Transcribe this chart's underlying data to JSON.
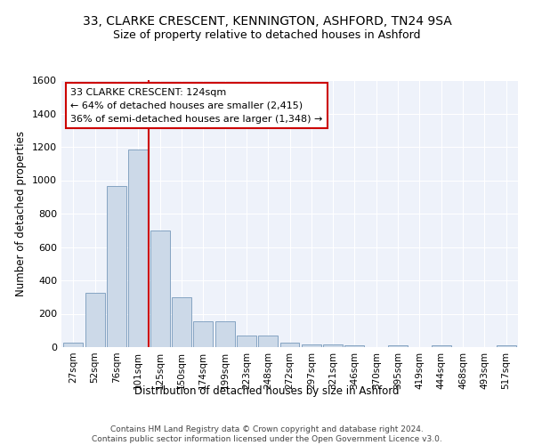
{
  "title": "33, CLARKE CRESCENT, KENNINGTON, ASHFORD, TN24 9SA",
  "subtitle": "Size of property relative to detached houses in Ashford",
  "xlabel": "Distribution of detached houses by size in Ashford",
  "ylabel": "Number of detached properties",
  "bar_color": "#ccd9e8",
  "bar_edge_color": "#7799bb",
  "background_color": "#eef2fa",
  "grid_color": "#ffffff",
  "categories": [
    "27sqm",
    "52sqm",
    "76sqm",
    "101sqm",
    "125sqm",
    "150sqm",
    "174sqm",
    "199sqm",
    "223sqm",
    "248sqm",
    "272sqm",
    "297sqm",
    "321sqm",
    "346sqm",
    "370sqm",
    "395sqm",
    "419sqm",
    "444sqm",
    "468sqm",
    "493sqm",
    "517sqm"
  ],
  "values": [
    28,
    325,
    965,
    1185,
    700,
    300,
    155,
    155,
    70,
    70,
    25,
    18,
    18,
    12,
    0,
    10,
    0,
    10,
    0,
    0,
    12
  ],
  "ylim": [
    0,
    1600
  ],
  "yticks": [
    0,
    200,
    400,
    600,
    800,
    1000,
    1200,
    1400,
    1600
  ],
  "property_line_idx": 3.5,
  "property_line_color": "#cc0000",
  "annotation_line1": "33 CLARKE CRESCENT: 124sqm",
  "annotation_line2": "← 64% of detached houses are smaller (2,415)",
  "annotation_line3": "36% of semi-detached houses are larger (1,348) →",
  "annotation_box_color": "#ffffff",
  "annotation_box_edge": "#cc0000",
  "footer": "Contains HM Land Registry data © Crown copyright and database right 2024.\nContains public sector information licensed under the Open Government Licence v3.0.",
  "figsize": [
    6.0,
    5.0
  ],
  "dpi": 100
}
